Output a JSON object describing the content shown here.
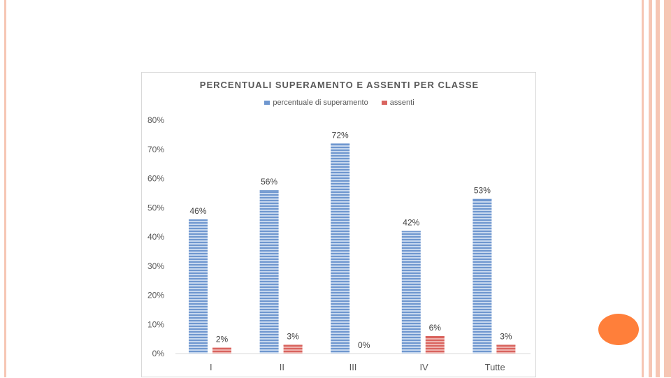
{
  "colors": {
    "series1": "#6f97cf",
    "series1_stripe": "#c6d7ee",
    "series2": "#d9645f",
    "series2_stripe": "#eeb2ae",
    "frame": "#f6c6b4",
    "accent": "#ff7f3a",
    "text": "#595959",
    "axis": "#d9d9d9"
  },
  "chart_data": {
    "type": "bar",
    "title": "PERCENTUALI SUPERAMENTO E ASSENTI PER CLASSE",
    "categories": [
      "I",
      "II",
      "III",
      "IV",
      "Tutte"
    ],
    "series": [
      {
        "name": "percentuale di superamento",
        "values": [
          46,
          56,
          72,
          42,
          53
        ],
        "labels": [
          "46%",
          "56%",
          "72%",
          "42%",
          "53%"
        ]
      },
      {
        "name": "assenti",
        "values": [
          2,
          3,
          0,
          6,
          3
        ],
        "labels": [
          "2%",
          "3%",
          "0%",
          "6%",
          "3%"
        ]
      }
    ],
    "y_ticks": [
      0,
      10,
      20,
      30,
      40,
      50,
      60,
      70,
      80
    ],
    "y_tick_labels": [
      "0%",
      "10%",
      "20%",
      "30%",
      "40%",
      "50%",
      "60%",
      "70%",
      "80%"
    ],
    "ylim": [
      0,
      80
    ],
    "xlabel": "",
    "ylabel": "",
    "grid": false,
    "legend_position": "top"
  }
}
